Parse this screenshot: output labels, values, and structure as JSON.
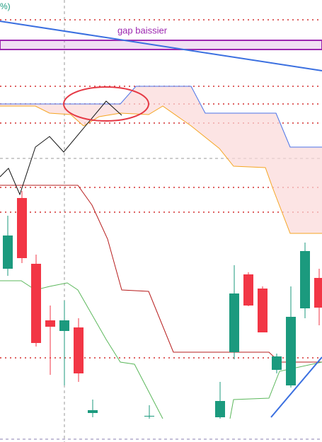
{
  "chart_data": {
    "type": "candlestick",
    "header_fragment": "%)",
    "xlim": [
      -0.55,
      22.2
    ],
    "ylim": [
      0,
      625
    ],
    "up_color": "#1b9a7e",
    "down_color": "#f23645",
    "candles": {
      "x": [
        0,
        1,
        2,
        3,
        4,
        5,
        6,
        10,
        15,
        16,
        17,
        18,
        19,
        20,
        21,
        22
      ],
      "open": [
        245,
        345,
        252,
        172,
        157,
        162,
        41,
        36,
        35,
        127,
        237,
        217,
        102,
        80,
        189,
        232
      ],
      "high": [
        320,
        355,
        265,
        193,
        200,
        175,
        60,
        52,
        85,
        250,
        240,
        220,
        125,
        220,
        282,
        245
      ],
      "low": [
        235,
        253,
        135,
        95,
        80,
        85,
        35,
        33,
        33,
        117,
        192,
        155,
        97,
        77,
        175,
        165
      ],
      "close": [
        292,
        260,
        140,
        163,
        172,
        97,
        45,
        37,
        58,
        210,
        193,
        155,
        121,
        177,
        270,
        190
      ]
    },
    "cloud": {
      "color": "#fbd9d9",
      "upper": {
        "color": "#4a72e8",
        "x": [
          -0.55,
          7.95,
          9.05,
          12.95,
          13.95,
          18.95,
          19.95,
          22.2
        ],
        "values": [
          478,
          478,
          503,
          503,
          465,
          465,
          417,
          417
        ]
      },
      "lower": {
        "color": "#f5a623",
        "x": [
          -0.55,
          1.95,
          2.95,
          4.45,
          5.35,
          6.45,
          7.95,
          9.95,
          10.95,
          12.95,
          14.95,
          15.95,
          18.2,
          18.7,
          19.95,
          22.2
        ],
        "values": [
          475,
          475,
          465,
          463,
          447,
          460,
          465,
          463,
          475,
          447,
          415,
          390,
          388,
          360,
          295,
          295
        ]
      }
    },
    "series": [
      {
        "color": "#b71c1c",
        "x": [
          -0.55,
          4.95,
          5.95,
          7.05,
          8.05,
          9.95,
          11.7,
          18.45,
          19.2,
          22.2
        ],
        "values": [
          363,
          363,
          335,
          287,
          215,
          213,
          127,
          127,
          113,
          113
        ]
      },
      {
        "color": "#5cb85c",
        "x": [
          -0.55,
          0.95,
          1.95,
          2.95,
          4.2,
          4.95,
          6.95,
          7.95,
          8.95,
          10.95,
          null,
          15.7,
          15.95,
          18.45,
          19.2,
          22.2
        ],
        "values": [
          228,
          228,
          215,
          220,
          225,
          215,
          145,
          113,
          110,
          33,
          null,
          33,
          60,
          62,
          100,
          113
        ]
      },
      {
        "color": "#111111",
        "x": [
          -0.55,
          0.05,
          0.85,
          1.95,
          2.95,
          3.95,
          6.95,
          8.05
        ],
        "values": [
          375,
          387,
          350,
          417,
          432,
          410,
          482,
          462
        ]
      }
    ],
    "trendlines": [
      {
        "color": "#3a6fe0",
        "x": [
          -0.55,
          22.2
        ],
        "values": [
          595,
          525
        ]
      },
      {
        "color": "#3a6fe0",
        "x": [
          18.6,
          22.2
        ],
        "values": [
          35,
          120
        ]
      }
    ],
    "levels": {
      "color": "#d32f2f",
      "values": [
        597,
        503,
        478,
        451,
        360,
        325,
        119
      ]
    },
    "gap_zone": {
      "label": "gap baissier",
      "range": [
        555,
        568
      ],
      "color": "#9c27b0"
    }
  }
}
